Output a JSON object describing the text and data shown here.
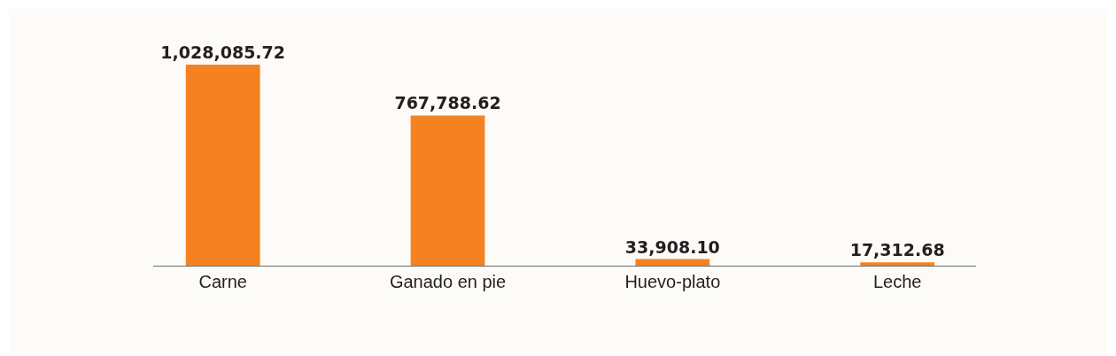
{
  "chart_data": {
    "type": "bar",
    "categories": [
      "Carne",
      "Ganado en pie",
      "Huevo-plato",
      "Leche"
    ],
    "values": [
      1028085.72,
      767788.62,
      33908.1,
      17312.68
    ],
    "value_labels": [
      "1,028,085.72",
      "767,788.62",
      "33,908.10",
      "17,312.68"
    ],
    "color": "#f58220",
    "grid": false,
    "legend": false
  }
}
